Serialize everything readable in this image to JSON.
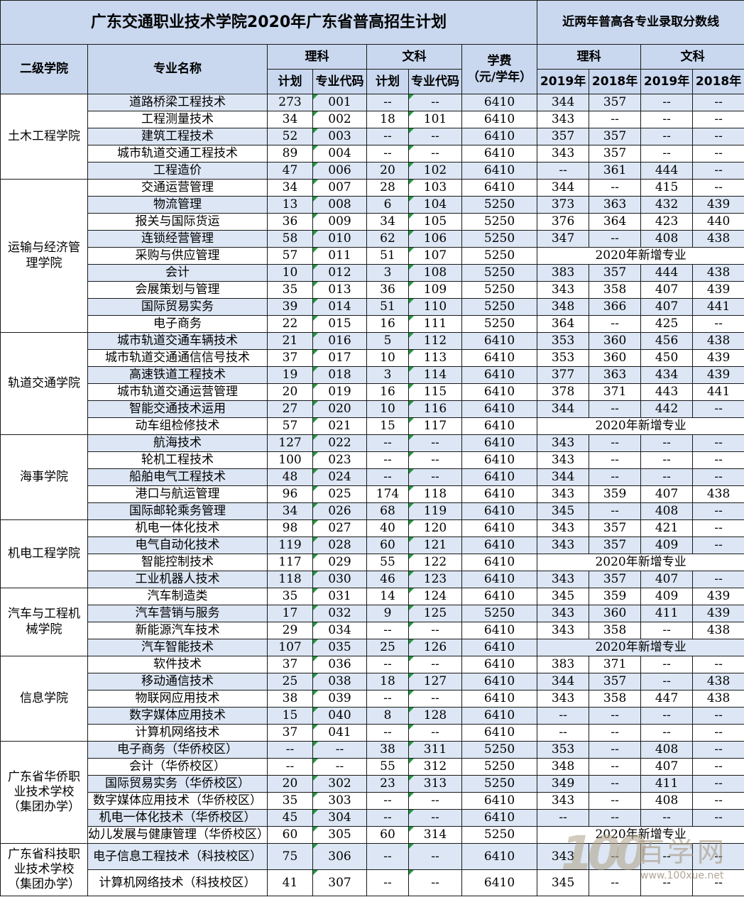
{
  "title": "广东交通职业技术学院2020年广东省普高招生计划",
  "subtitle": "近两年普高各专业录取分数线",
  "headers": {
    "college": "二级学院",
    "major": "专业名称",
    "science": "理科",
    "arts": "文科",
    "plan": "计划",
    "code": "专业代码",
    "tuition_line1": "学费",
    "tuition_line2": "（元/学年）",
    "score_science": "理科",
    "score_arts": "文科",
    "y2019": "2019年",
    "y2018": "2018年"
  },
  "groups": [
    {
      "college": "土木工程学院",
      "rows": [
        [
          "道路桥梁工程技术",
          "273",
          "001",
          "--",
          "--",
          "6410",
          "344",
          "357",
          "--",
          "--"
        ],
        [
          "工程测量技术",
          "34",
          "002",
          "18",
          "101",
          "6410",
          "343",
          "--",
          "--",
          "--"
        ],
        [
          "建筑工程技术",
          "52",
          "003",
          "--",
          "--",
          "6410",
          "357",
          "357",
          "--",
          "--"
        ],
        [
          "城市轨道交通工程技术",
          "89",
          "004",
          "--",
          "--",
          "6410",
          "343",
          "357",
          "--",
          "--"
        ],
        [
          "工程造价",
          "47",
          "006",
          "20",
          "102",
          "6410",
          "--",
          "361",
          "444",
          "--"
        ]
      ]
    },
    {
      "college": "运输与经济管理学院",
      "rows": [
        [
          "交通运营管理",
          "34",
          "007",
          "28",
          "103",
          "6410",
          "344",
          "--",
          "415",
          "--"
        ],
        [
          "物流管理",
          "13",
          "008",
          "6",
          "104",
          "5250",
          "373",
          "363",
          "432",
          "439"
        ],
        [
          "报关与国际货运",
          "36",
          "009",
          "34",
          "105",
          "5250",
          "376",
          "364",
          "423",
          "440"
        ],
        [
          "连锁经营管理",
          "58",
          "010",
          "62",
          "106",
          "5250",
          "347",
          "--",
          "408",
          "438"
        ],
        [
          "采购与供应管理",
          "57",
          "011",
          "51",
          "107",
          "5250",
          "2020年新增专业"
        ],
        [
          "会计",
          "10",
          "012",
          "3",
          "108",
          "5250",
          "383",
          "357",
          "444",
          "438"
        ],
        [
          "会展策划与管理",
          "35",
          "013",
          "36",
          "109",
          "5250",
          "343",
          "358",
          "407",
          "439"
        ],
        [
          "国际贸易实务",
          "39",
          "014",
          "51",
          "110",
          "5250",
          "348",
          "366",
          "407",
          "441"
        ],
        [
          "电子商务",
          "22",
          "015",
          "16",
          "111",
          "5250",
          "364",
          "--",
          "425",
          "--"
        ]
      ]
    },
    {
      "college": "轨道交通学院",
      "rows": [
        [
          "城市轨道交通车辆技术",
          "21",
          "016",
          "5",
          "112",
          "6410",
          "353",
          "360",
          "456",
          "438"
        ],
        [
          "城市轨道交通通信信号技术",
          "37",
          "017",
          "10",
          "113",
          "6410",
          "353",
          "360",
          "450",
          "439"
        ],
        [
          "高速铁道工程技术",
          "19",
          "018",
          "3",
          "114",
          "6410",
          "377",
          "363",
          "434",
          "439"
        ],
        [
          "城市轨道交通运营管理",
          "20",
          "019",
          "16",
          "115",
          "6410",
          "378",
          "371",
          "443",
          "441"
        ],
        [
          "智能交通技术运用",
          "27",
          "020",
          "10",
          "116",
          "6410",
          "344",
          "--",
          "442",
          "--"
        ],
        [
          "动车组检修技术",
          "57",
          "021",
          "15",
          "117",
          "6410",
          "2020年新增专业"
        ]
      ]
    },
    {
      "college": "海事学院",
      "rows": [
        [
          "航海技术",
          "127",
          "022",
          "--",
          "--",
          "6410",
          "343",
          "--",
          "--",
          "--"
        ],
        [
          "轮机工程技术",
          "100",
          "023",
          "--",
          "--",
          "6410",
          "343",
          "--",
          "--",
          "--"
        ],
        [
          "船舶电气工程技术",
          "48",
          "024",
          "--",
          "--",
          "6410",
          "344",
          "--",
          "--",
          "--"
        ],
        [
          "港口与航运管理",
          "96",
          "025",
          "174",
          "118",
          "6410",
          "343",
          "359",
          "407",
          "438"
        ],
        [
          "国际邮轮乘务管理",
          "34",
          "026",
          "68",
          "119",
          "6410",
          "345",
          "--",
          "408",
          "--"
        ]
      ]
    },
    {
      "college": "机电工程学院",
      "rows": [
        [
          "机电一体化技术",
          "98",
          "027",
          "40",
          "120",
          "6410",
          "343",
          "357",
          "421",
          "--"
        ],
        [
          "电气自动化技术",
          "119",
          "028",
          "60",
          "121",
          "6410",
          "343",
          "357",
          "409",
          "--"
        ],
        [
          "智能控制技术",
          "117",
          "029",
          "55",
          "122",
          "6410",
          "2020年新增专业"
        ],
        [
          "工业机器人技术",
          "118",
          "030",
          "46",
          "123",
          "6410",
          "343",
          "357",
          "407",
          "--"
        ]
      ]
    },
    {
      "college": "汽车与工程机械学院",
      "rows": [
        [
          "汽车制造类",
          "35",
          "031",
          "14",
          "124",
          "6410",
          "345",
          "359",
          "409",
          "439"
        ],
        [
          "汽车营销与服务",
          "17",
          "032",
          "9",
          "125",
          "5250",
          "343",
          "360",
          "411",
          "439"
        ],
        [
          "新能源汽车技术",
          "29",
          "034",
          "--",
          "--",
          "6410",
          "343",
          "358",
          "--",
          "438"
        ],
        [
          "汽车智能技术",
          "107",
          "035",
          "25",
          "126",
          "6410",
          "2020年新增专业"
        ]
      ]
    },
    {
      "college": "信息学院",
      "rows": [
        [
          "软件技术",
          "37",
          "036",
          "--",
          "--",
          "6410",
          "383",
          "371",
          "--",
          "--"
        ],
        [
          "移动通信技术",
          "25",
          "038",
          "18",
          "127",
          "6410",
          "344",
          "357",
          "--",
          "438"
        ],
        [
          "物联网应用技术",
          "38",
          "039",
          "--",
          "--",
          "6410",
          "343",
          "358",
          "447",
          "438"
        ],
        [
          "数字媒体应用技术",
          "15",
          "040",
          "8",
          "128",
          "6410",
          "--",
          "--",
          "--",
          "--"
        ],
        [
          "计算机网络技术",
          "37",
          "041",
          "--",
          "--",
          "6410",
          "--",
          "--",
          "--",
          "--"
        ]
      ]
    },
    {
      "college": "广东省华侨职业技术学校（集团办学）",
      "rows": [
        [
          "电子商务（华侨校区）",
          "--",
          "--",
          "38",
          "311",
          "5250",
          "353",
          "--",
          "408",
          "--"
        ],
        [
          "会计（华侨校区）",
          "--",
          "--",
          "55",
          "312",
          "5250",
          "348",
          "--",
          "407",
          "--"
        ],
        [
          "国际贸易实务（华侨校区）",
          "20",
          "302",
          "23",
          "313",
          "5250",
          "349",
          "--",
          "411",
          "--"
        ],
        [
          "数字媒体应用技术（华侨校区）",
          "35",
          "303",
          "--",
          "--",
          "6410",
          "343",
          "--",
          "408",
          "--"
        ],
        [
          "机电一体化技术（华侨校区）",
          "45",
          "304",
          "--",
          "--",
          "6410",
          "--",
          "--",
          "--",
          "--"
        ],
        [
          "幼儿发展与健康管理（华侨校区）",
          "60",
          "305",
          "60",
          "314",
          "5250",
          "2020年新增专业"
        ]
      ]
    },
    {
      "college": "广东省科技职业技术学校（集团办学）",
      "rows": [
        [
          "电子信息工程技术（科技校区）",
          "75",
          "306",
          "--",
          "--",
          "6410",
          "343",
          "--",
          "--",
          "--"
        ],
        [
          "计算机网络技术（科技校区）",
          "41",
          "307",
          "--",
          "--",
          "6410",
          "345",
          "--",
          "--",
          "--"
        ]
      ]
    }
  ],
  "watermark": {
    "logo": "100",
    "name": "百学网",
    "url": "www.100xue.net"
  }
}
